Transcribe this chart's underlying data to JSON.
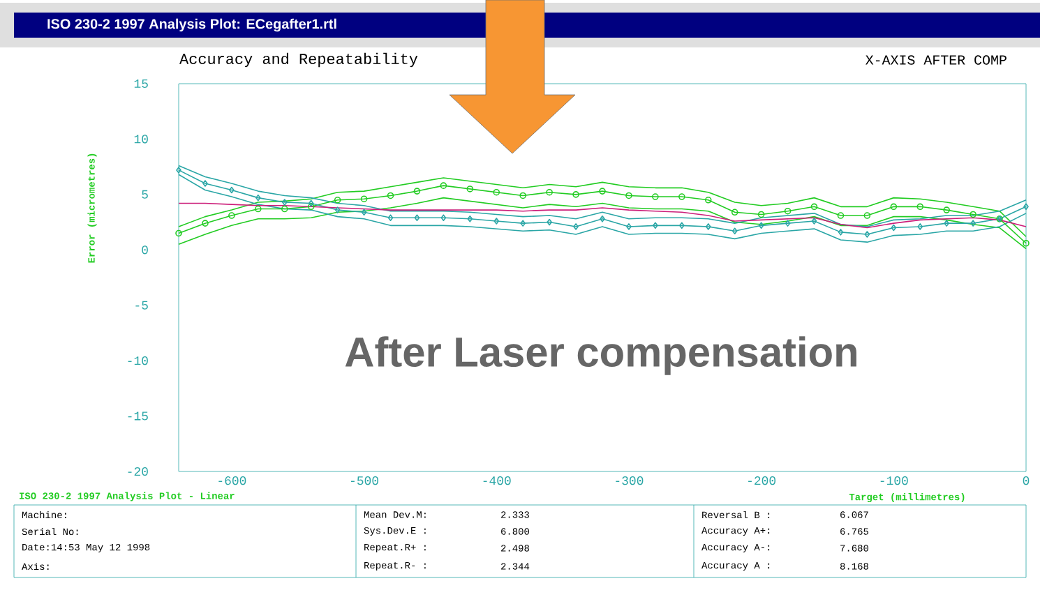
{
  "chart_data": {
    "type": "line",
    "title": "ISO 230-2 1997 Analysis Plot: ECegafter1.rtl",
    "subtitle": "Accuracy and Repeatability",
    "xlabel": "Target (millimetres)",
    "ylabel": "Error (micrometres)",
    "x": [
      -640,
      -620,
      -600,
      -580,
      -560,
      -540,
      -520,
      -500,
      -480,
      -460,
      -440,
      -420,
      -400,
      -380,
      -360,
      -340,
      -320,
      -300,
      -280,
      -260,
      -240,
      -220,
      -200,
      -180,
      -160,
      -140,
      -120,
      -100,
      -80,
      -60,
      -40,
      -20,
      0
    ],
    "xlim": [
      -640,
      0
    ],
    "ylim": [
      -20,
      15
    ],
    "xticks": [
      -600,
      -500,
      -400,
      -300,
      -200,
      -100,
      0
    ],
    "yticks": [
      -20,
      -15,
      -10,
      -5,
      0,
      5,
      10,
      15
    ],
    "series": [
      {
        "color": "#22cc22",
        "marker": "none",
        "values": [
          2.1,
          3.0,
          3.6,
          4.3,
          4.4,
          4.6,
          5.2,
          5.3,
          5.7,
          6.1,
          6.5,
          6.2,
          5.9,
          5.6,
          5.9,
          5.7,
          6.1,
          5.7,
          5.6,
          5.6,
          5.2,
          4.3,
          4.0,
          4.2,
          4.7,
          3.9,
          3.9,
          4.7,
          4.6,
          4.3,
          3.9,
          3.5,
          1.2
        ]
      },
      {
        "color": "#22cc22",
        "marker": "none",
        "values": [
          0.5,
          1.4,
          2.2,
          2.8,
          2.8,
          2.9,
          3.4,
          3.5,
          3.8,
          4.2,
          4.7,
          4.4,
          4.1,
          3.8,
          4.1,
          3.9,
          4.2,
          3.8,
          3.7,
          3.7,
          3.5,
          2.5,
          2.3,
          2.6,
          3.0,
          2.2,
          2.2,
          3.0,
          3.0,
          2.7,
          2.3,
          2.0,
          0.1
        ]
      },
      {
        "color": "#2aa6a6",
        "marker": "none",
        "values": [
          7.6,
          6.6,
          6.0,
          5.3,
          4.9,
          4.7,
          4.2,
          4.0,
          3.5,
          3.5,
          3.5,
          3.4,
          3.2,
          3.0,
          3.1,
          2.8,
          3.4,
          2.8,
          2.9,
          2.9,
          2.8,
          2.4,
          2.9,
          3.1,
          3.3,
          2.3,
          2.1,
          2.7,
          2.8,
          3.1,
          3.1,
          3.5,
          4.5
        ]
      },
      {
        "color": "#2aa6a6",
        "marker": "none",
        "values": [
          6.8,
          5.4,
          4.8,
          4.1,
          3.7,
          3.6,
          3.0,
          2.8,
          2.2,
          2.2,
          2.2,
          2.1,
          1.9,
          1.7,
          1.8,
          1.4,
          2.1,
          1.4,
          1.5,
          1.5,
          1.4,
          1.0,
          1.5,
          1.7,
          1.9,
          0.9,
          0.7,
          1.3,
          1.4,
          1.7,
          1.7,
          2.1,
          3.3
        ]
      },
      {
        "color": "#22cc22",
        "marker": "circle",
        "values": [
          1.5,
          2.4,
          3.1,
          3.7,
          3.7,
          3.9,
          4.5,
          4.6,
          4.9,
          5.3,
          5.8,
          5.5,
          5.2,
          4.9,
          5.2,
          5.0,
          5.3,
          4.9,
          4.8,
          4.8,
          4.5,
          3.4,
          3.2,
          3.5,
          3.9,
          3.1,
          3.1,
          3.9,
          3.9,
          3.6,
          3.2,
          2.8,
          0.6
        ]
      },
      {
        "color": "#2aa6a6",
        "marker": "diamond",
        "values": [
          7.2,
          6.0,
          5.4,
          4.7,
          4.3,
          4.2,
          3.6,
          3.4,
          2.9,
          2.9,
          2.9,
          2.8,
          2.6,
          2.4,
          2.5,
          2.1,
          2.8,
          2.1,
          2.2,
          2.2,
          2.1,
          1.7,
          2.2,
          2.4,
          2.6,
          1.6,
          1.4,
          2.0,
          2.1,
          2.4,
          2.4,
          2.8,
          3.9
        ]
      },
      {
        "color": "#cc1f7a",
        "marker": "none",
        "values": [
          4.2,
          4.2,
          4.1,
          4.0,
          4.0,
          3.9,
          3.8,
          3.7,
          3.6,
          3.6,
          3.6,
          3.6,
          3.6,
          3.5,
          3.6,
          3.6,
          3.8,
          3.6,
          3.5,
          3.4,
          3.1,
          2.6,
          2.7,
          2.8,
          2.9,
          2.3,
          2.0,
          2.4,
          2.7,
          2.8,
          2.9,
          2.7,
          2.1
        ]
      }
    ],
    "annotations": [
      "X-AXIS AFTER COMP",
      "ISO 230-2 1997 Analysis Plot - Linear",
      "After Laser compensation",
      "Machine:",
      "Serial No:",
      "Date:14:53 May 12 1998",
      "Axis:",
      "Mean Dev.M:",
      "2.333",
      "Sys.Dev.E :",
      "6.800",
      "Repeat.R+ :",
      "2.498",
      "Repeat.R- :",
      "2.344",
      "Reversal B :",
      "6.067",
      "Accuracy A+:",
      "6.765",
      "Accuracy A-:",
      "7.680",
      "Accuracy A :",
      "8.168"
    ]
  }
}
